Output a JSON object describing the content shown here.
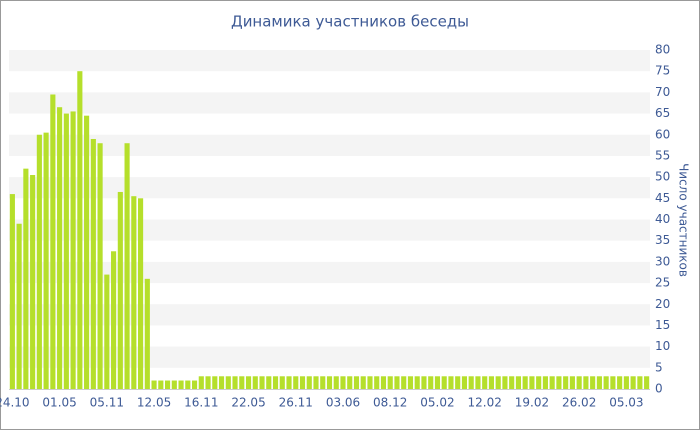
{
  "chart_data": {
    "type": "bar",
    "title": "Динамика участников беседы",
    "y_label": "Число участников",
    "categories": [
      "24.10",
      null,
      null,
      null,
      null,
      null,
      null,
      "01.05",
      null,
      null,
      null,
      null,
      null,
      null,
      "05.11",
      null,
      null,
      null,
      null,
      null,
      null,
      "12.05",
      null,
      null,
      null,
      null,
      null,
      null,
      "16.11",
      null,
      null,
      null,
      null,
      null,
      null,
      "22.05",
      null,
      null,
      null,
      null,
      null,
      null,
      "26.11",
      null,
      null,
      null,
      null,
      null,
      null,
      "03.06",
      null,
      null,
      null,
      null,
      null,
      null,
      "08.12",
      null,
      null,
      null,
      null,
      null,
      null,
      "05.02",
      null,
      null,
      null,
      null,
      null,
      null,
      "12.02",
      null,
      null,
      null,
      null,
      null,
      null,
      "19.02",
      null,
      null,
      null,
      null,
      null,
      null,
      "26.02",
      null,
      null,
      null,
      null,
      null,
      null,
      "05.03",
      null,
      null,
      null
    ],
    "values": [
      46,
      39,
      52,
      50.5,
      60,
      60.5,
      69.5,
      66.5,
      65,
      65.5,
      75,
      64.5,
      59,
      58,
      27,
      32.5,
      46.5,
      58,
      45.5,
      45,
      26,
      2,
      2,
      2,
      2,
      2,
      2,
      2,
      3,
      3,
      3,
      3,
      3,
      3,
      3,
      3,
      3,
      3,
      3,
      3,
      3,
      3,
      3,
      3,
      3,
      3,
      3,
      3,
      3,
      3,
      3,
      3,
      3,
      3,
      3,
      3,
      3,
      3,
      3,
      3,
      3,
      3,
      3,
      3,
      3,
      3,
      3,
      3,
      3,
      3,
      3,
      3,
      3,
      3,
      3,
      3,
      3,
      3,
      3,
      3,
      3,
      3,
      3,
      3,
      3,
      3,
      3,
      3,
      3,
      3,
      3,
      3,
      3,
      3,
      3
    ],
    "color": "#b5df2b",
    "ylim": [
      0,
      80
    ],
    "yticks": [
      0,
      5,
      10,
      15,
      20,
      25,
      30,
      35,
      40,
      45,
      50,
      55,
      60,
      65,
      70,
      75,
      80
    ],
    "grid": true
  }
}
